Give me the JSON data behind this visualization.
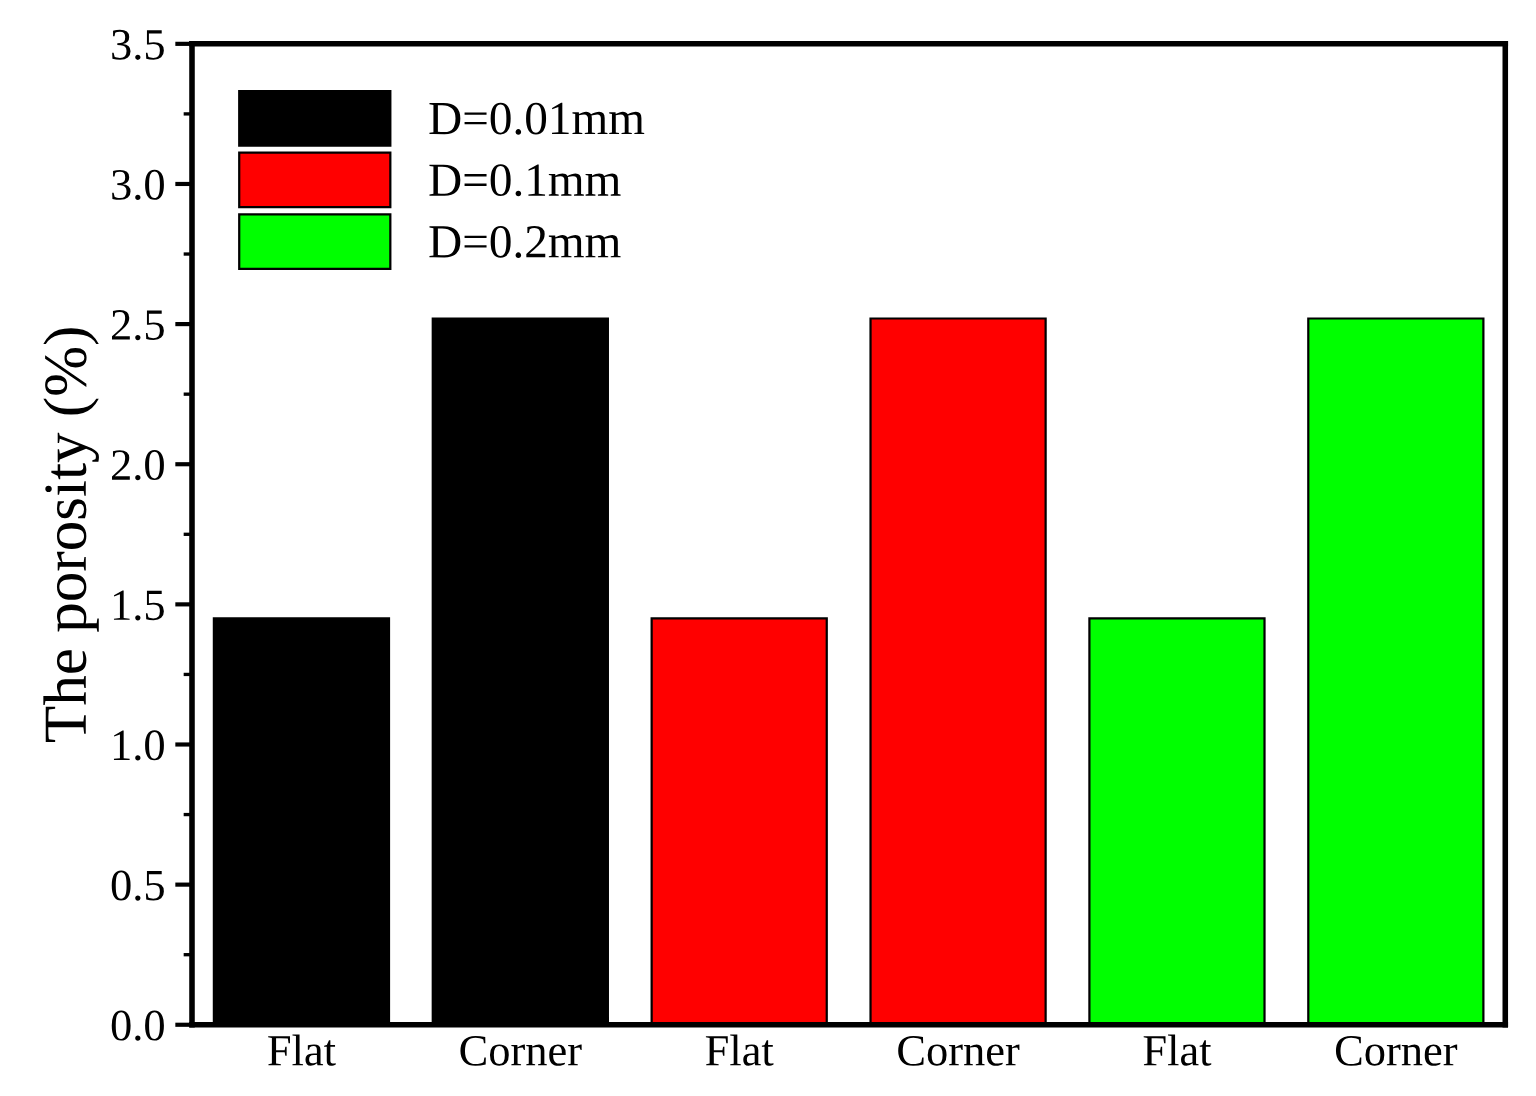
{
  "chart_data": {
    "type": "bar",
    "ylabel": "The porosity (%)",
    "categories": [
      "Flat",
      "Corner",
      "Flat",
      "Corner",
      "Flat",
      "Corner"
    ],
    "series": [
      {
        "name": "D=0.01mm",
        "color": "#000000",
        "values": [
          1.45,
          2.52,
          null,
          null,
          null,
          null
        ]
      },
      {
        "name": "D=0.1mm",
        "color": "#ff0000",
        "values": [
          null,
          null,
          1.45,
          2.52,
          null,
          null
        ]
      },
      {
        "name": "D=0.2mm",
        "color": "#00ff00",
        "values": [
          null,
          null,
          null,
          null,
          1.45,
          2.52
        ]
      }
    ],
    "ylim": [
      0,
      3.5
    ],
    "yticks": [
      {
        "value": 0,
        "label": "0.0"
      },
      0.5,
      {
        "value": 1,
        "label": "1.0"
      },
      1.5,
      {
        "value": 2,
        "label": "2.0"
      },
      2.5,
      {
        "value": 3,
        "label": "3.0"
      },
      3.5
    ],
    "legend": "top left",
    "grid": false
  }
}
